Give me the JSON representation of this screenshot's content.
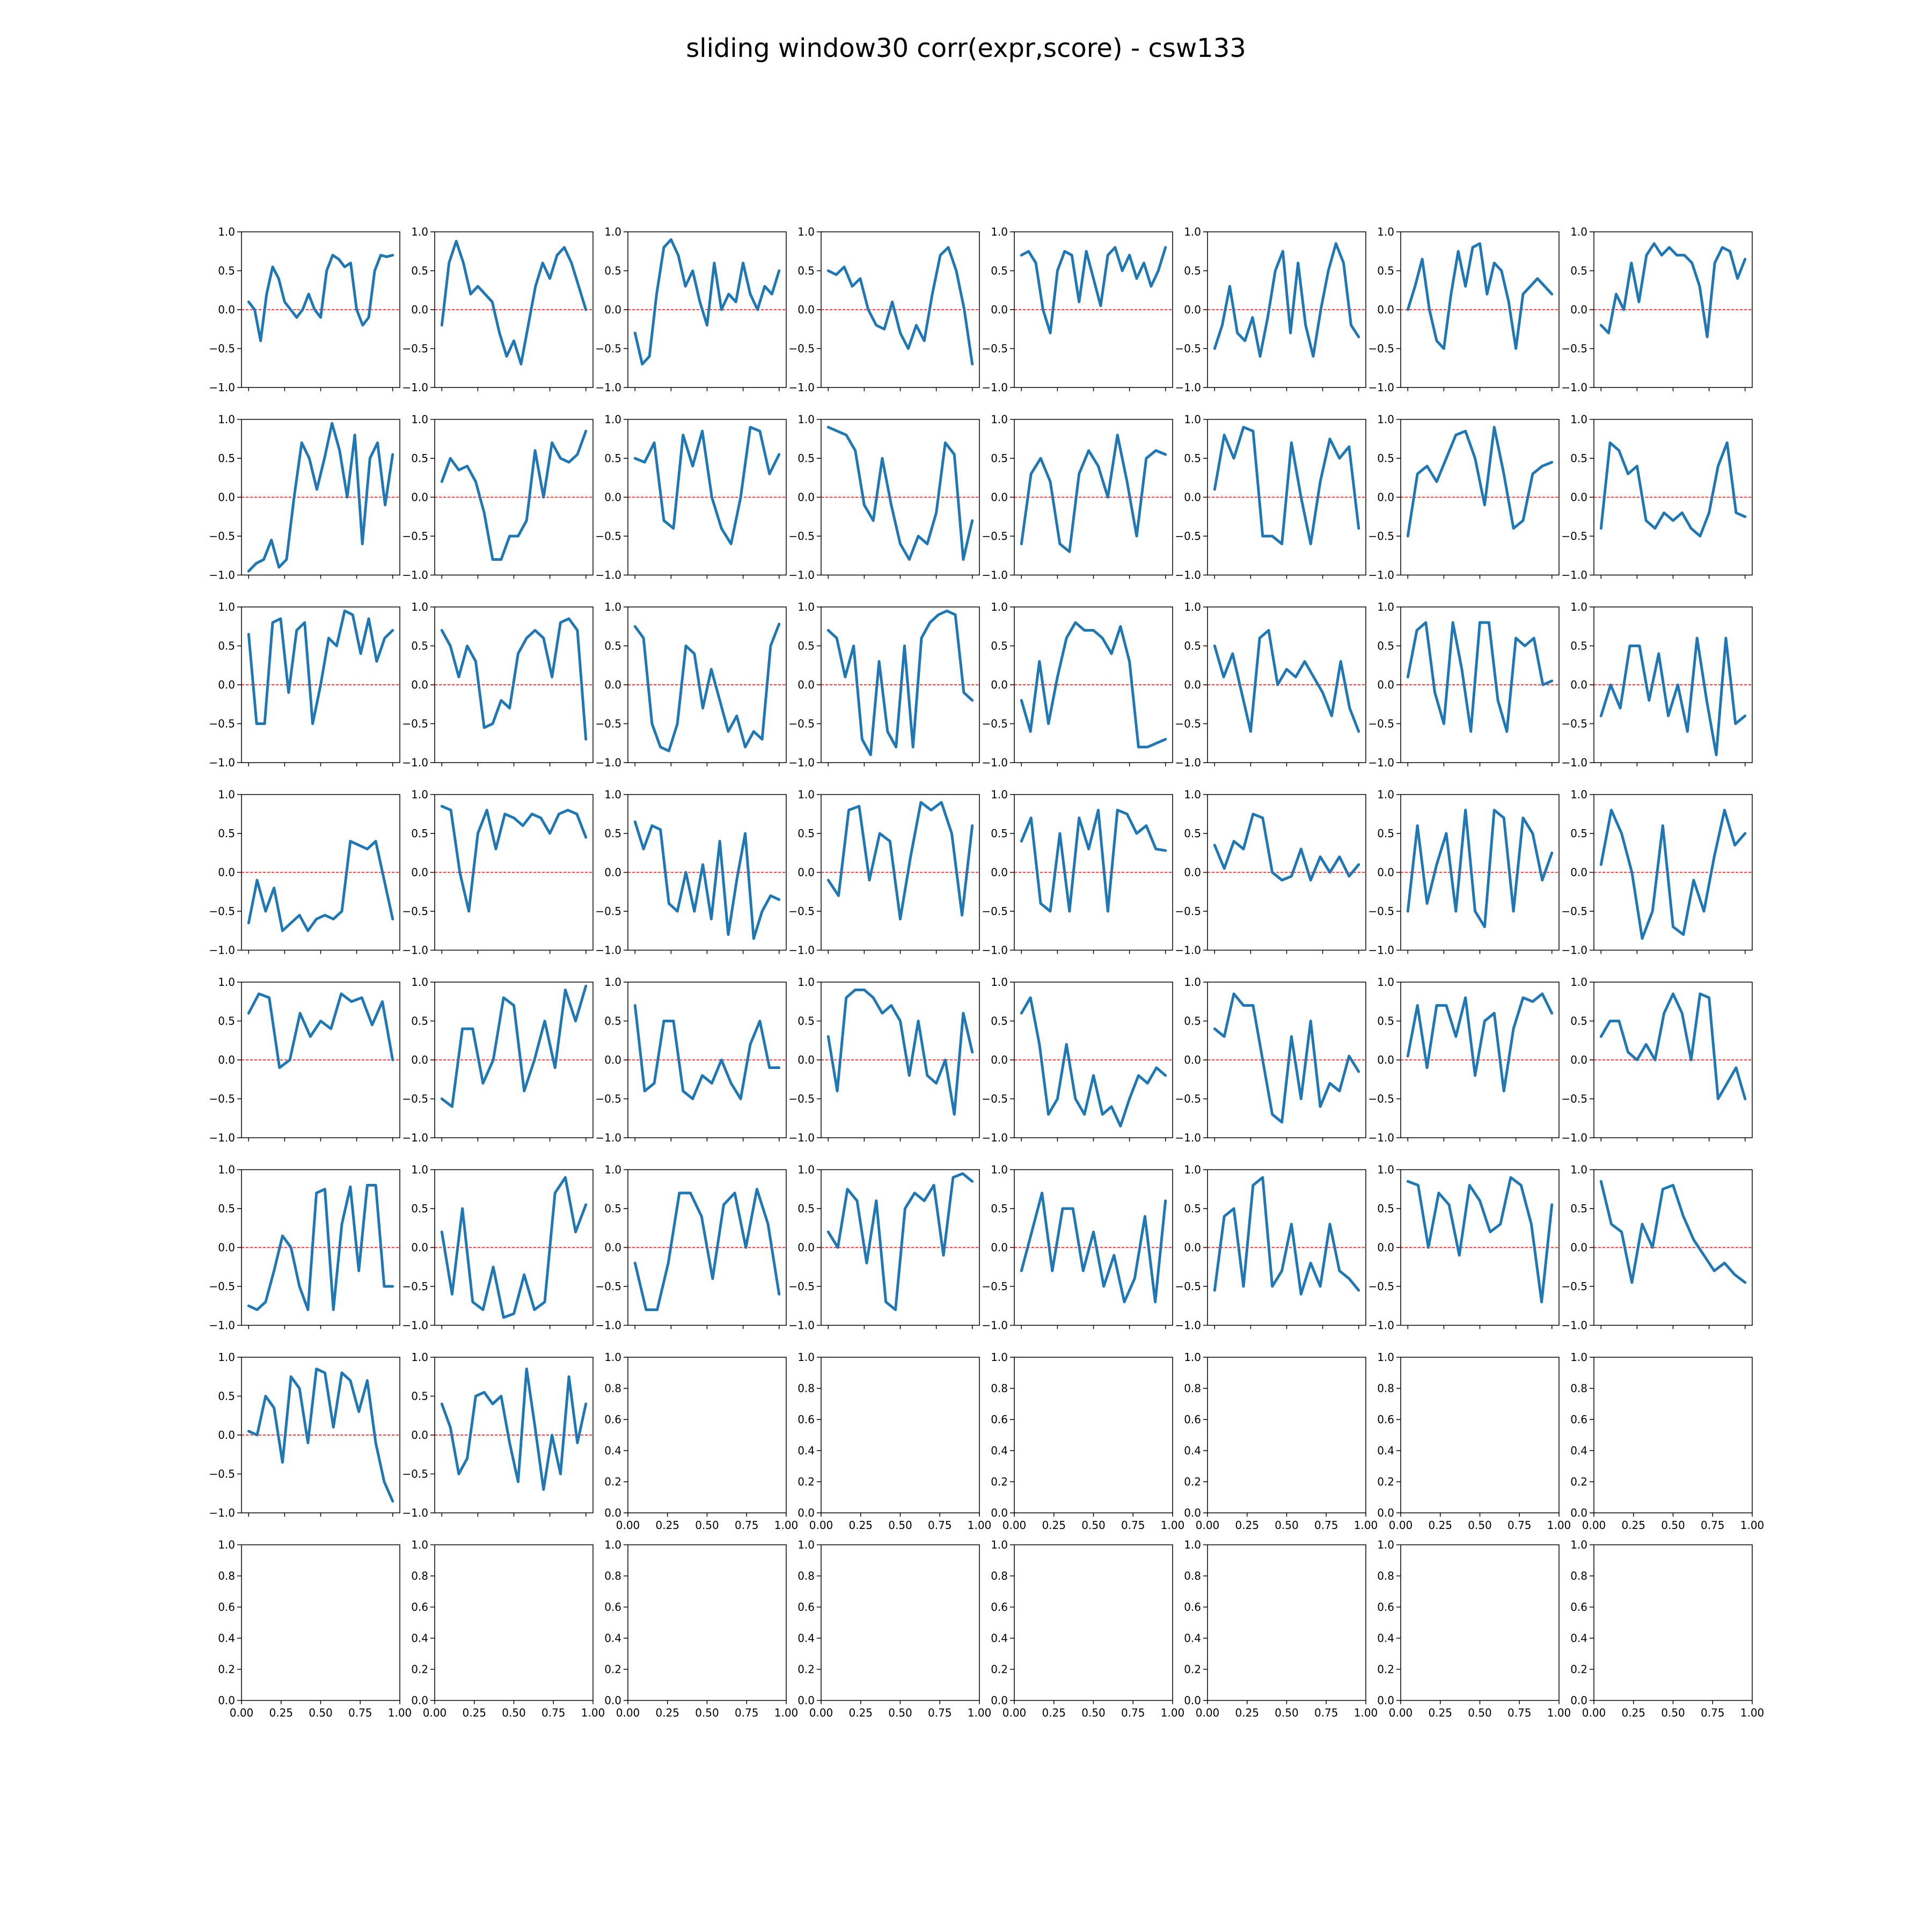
{
  "title": "sliding window30 corr(expr,score) - csw133",
  "colors": {
    "line": "#1f77b4",
    "zero_line": "#ff0000",
    "axes": "#000000"
  },
  "chart_data": {
    "type": "line",
    "layout": {
      "rows": 8,
      "cols": 8
    },
    "y_ticks_filled": [
      "1.0",
      "0.5",
      "0.0",
      "−0.5",
      "−1.0"
    ],
    "y_ticks_empty": [
      "1.0",
      "0.8",
      "0.6",
      "0.4",
      "0.2",
      "0.0"
    ],
    "x_ticks_empty": [
      "0.00",
      "0.25",
      "0.50",
      "0.75",
      "1.00"
    ],
    "ylim_filled": [
      -1,
      1
    ],
    "ylim_empty": [
      0,
      1
    ],
    "xlim_empty": [
      0,
      1
    ],
    "reference_line_y": 0,
    "series": [
      {
        "values": [
          0.1,
          0.0,
          -0.4,
          0.2,
          0.55,
          0.4,
          0.1,
          0.0,
          -0.1,
          0.0,
          0.2,
          0.0,
          -0.1,
          0.5,
          0.7,
          0.65,
          0.55,
          0.6,
          0.0,
          -0.2,
          -0.1,
          0.5,
          0.7,
          0.68,
          0.7
        ]
      },
      {
        "values": [
          -0.2,
          0.6,
          0.88,
          0.6,
          0.2,
          0.3,
          0.2,
          0.1,
          -0.3,
          -0.6,
          -0.4,
          -0.7,
          -0.2,
          0.3,
          0.6,
          0.4,
          0.7,
          0.8,
          0.6,
          0.3,
          0.0
        ]
      },
      {
        "values": [
          -0.3,
          -0.7,
          -0.6,
          0.2,
          0.8,
          0.9,
          0.7,
          0.3,
          0.5,
          0.1,
          -0.2,
          0.6,
          0.0,
          0.2,
          0.1,
          0.6,
          0.2,
          0.0,
          0.3,
          0.2,
          0.5
        ]
      },
      {
        "values": [
          0.5,
          0.45,
          0.55,
          0.3,
          0.4,
          0.0,
          -0.2,
          -0.25,
          0.1,
          -0.3,
          -0.5,
          -0.2,
          -0.4,
          0.2,
          0.7,
          0.8,
          0.5,
          0.0,
          -0.7
        ]
      },
      {
        "values": [
          0.7,
          0.75,
          0.6,
          0.0,
          -0.3,
          0.5,
          0.75,
          0.7,
          0.1,
          0.75,
          0.4,
          0.05,
          0.7,
          0.8,
          0.5,
          0.7,
          0.4,
          0.6,
          0.3,
          0.5,
          0.8
        ]
      },
      {
        "values": [
          -0.5,
          -0.2,
          0.3,
          -0.3,
          -0.4,
          -0.1,
          -0.6,
          -0.1,
          0.5,
          0.75,
          -0.3,
          0.6,
          -0.2,
          -0.6,
          0.0,
          0.5,
          0.85,
          0.6,
          -0.2,
          -0.35
        ]
      },
      {
        "values": [
          0.0,
          0.3,
          0.65,
          0.0,
          -0.4,
          -0.5,
          0.2,
          0.75,
          0.3,
          0.8,
          0.85,
          0.2,
          0.6,
          0.5,
          0.1,
          -0.5,
          0.2,
          0.3,
          0.4,
          0.3,
          0.2
        ]
      },
      {
        "values": [
          -0.2,
          -0.3,
          0.2,
          0.0,
          0.6,
          0.1,
          0.7,
          0.85,
          0.7,
          0.8,
          0.7,
          0.7,
          0.6,
          0.3,
          -0.35,
          0.6,
          0.8,
          0.75,
          0.4,
          0.65
        ]
      },
      {
        "values": [
          -0.95,
          -0.85,
          -0.8,
          -0.55,
          -0.9,
          -0.8,
          0.0,
          0.7,
          0.5,
          0.1,
          0.5,
          0.95,
          0.6,
          0.0,
          0.8,
          -0.6,
          0.5,
          0.7,
          -0.1,
          0.55
        ]
      },
      {
        "values": [
          0.2,
          0.5,
          0.35,
          0.4,
          0.2,
          -0.2,
          -0.8,
          -0.8,
          -0.5,
          -0.5,
          -0.3,
          0.6,
          0.0,
          0.7,
          0.5,
          0.45,
          0.55,
          0.85
        ]
      },
      {
        "values": [
          0.5,
          0.45,
          0.7,
          -0.3,
          -0.4,
          0.8,
          0.4,
          0.85,
          0.0,
          -0.4,
          -0.6,
          0.0,
          0.9,
          0.85,
          0.3,
          0.55
        ]
      },
      {
        "values": [
          0.9,
          0.85,
          0.8,
          0.6,
          -0.1,
          -0.3,
          0.5,
          -0.1,
          -0.6,
          -0.8,
          -0.5,
          -0.6,
          -0.2,
          0.7,
          0.55,
          -0.8,
          -0.3
        ]
      },
      {
        "values": [
          -0.6,
          0.3,
          0.5,
          0.2,
          -0.6,
          -0.7,
          0.3,
          0.6,
          0.4,
          0.0,
          0.8,
          0.2,
          -0.5,
          0.5,
          0.6,
          0.55
        ]
      },
      {
        "values": [
          0.1,
          0.8,
          0.5,
          0.9,
          0.85,
          -0.5,
          -0.5,
          -0.6,
          0.7,
          0.0,
          -0.6,
          0.2,
          0.75,
          0.5,
          0.65,
          -0.4
        ]
      },
      {
        "values": [
          -0.5,
          0.3,
          0.4,
          0.2,
          0.5,
          0.8,
          0.85,
          0.5,
          -0.1,
          0.9,
          0.3,
          -0.4,
          -0.3,
          0.3,
          0.4,
          0.45
        ]
      },
      {
        "values": [
          -0.4,
          0.7,
          0.6,
          0.3,
          0.4,
          -0.3,
          -0.4,
          -0.2,
          -0.3,
          -0.2,
          -0.4,
          -0.5,
          -0.2,
          0.4,
          0.7,
          -0.2,
          -0.25
        ]
      },
      {
        "values": [
          0.65,
          -0.5,
          -0.5,
          0.8,
          0.85,
          -0.1,
          0.7,
          0.8,
          -0.5,
          0.0,
          0.6,
          0.5,
          0.95,
          0.9,
          0.4,
          0.85,
          0.3,
          0.6,
          0.7
        ]
      },
      {
        "values": [
          0.7,
          0.5,
          0.1,
          0.5,
          0.3,
          -0.55,
          -0.5,
          -0.2,
          -0.3,
          0.4,
          0.6,
          0.7,
          0.6,
          0.1,
          0.8,
          0.85,
          0.7,
          -0.7
        ]
      },
      {
        "values": [
          0.75,
          0.6,
          -0.5,
          -0.8,
          -0.85,
          -0.5,
          0.5,
          0.4,
          -0.3,
          0.2,
          -0.2,
          -0.6,
          -0.4,
          -0.8,
          -0.6,
          -0.7,
          0.5,
          0.78
        ]
      },
      {
        "values": [
          0.7,
          0.6,
          0.1,
          0.5,
          -0.7,
          -0.9,
          0.3,
          -0.6,
          -0.8,
          0.5,
          -0.8,
          0.6,
          0.8,
          0.9,
          0.95,
          0.9,
          -0.1,
          -0.2
        ]
      },
      {
        "values": [
          -0.2,
          -0.6,
          0.3,
          -0.5,
          0.1,
          0.6,
          0.8,
          0.7,
          0.7,
          0.6,
          0.4,
          0.75,
          0.3,
          -0.8,
          -0.8,
          -0.75,
          -0.7
        ]
      },
      {
        "values": [
          0.5,
          0.1,
          0.4,
          -0.1,
          -0.6,
          0.6,
          0.7,
          0.0,
          0.2,
          0.1,
          0.3,
          0.1,
          -0.1,
          -0.4,
          0.3,
          -0.3,
          -0.6
        ]
      },
      {
        "values": [
          0.1,
          0.7,
          0.8,
          -0.1,
          -0.5,
          0.8,
          0.2,
          -0.6,
          0.8,
          0.8,
          -0.2,
          -0.6,
          0.6,
          0.5,
          0.6,
          0.0,
          0.05
        ]
      },
      {
        "values": [
          -0.4,
          0.0,
          -0.3,
          0.5,
          0.5,
          -0.2,
          0.4,
          -0.4,
          0.0,
          -0.6,
          0.6,
          -0.2,
          -0.9,
          0.6,
          -0.5,
          -0.4
        ]
      },
      {
        "values": [
          -0.65,
          -0.1,
          -0.5,
          -0.2,
          -0.75,
          -0.65,
          -0.55,
          -0.75,
          -0.6,
          -0.55,
          -0.6,
          -0.5,
          0.4,
          0.35,
          0.3,
          0.4,
          -0.1,
          -0.6
        ]
      },
      {
        "values": [
          0.85,
          0.8,
          0.0,
          -0.5,
          0.5,
          0.8,
          0.3,
          0.75,
          0.7,
          0.6,
          0.75,
          0.7,
          0.5,
          0.75,
          0.8,
          0.75,
          0.45
        ]
      },
      {
        "values": [
          0.65,
          0.3,
          0.6,
          0.55,
          -0.4,
          -0.5,
          0.0,
          -0.5,
          0.1,
          -0.6,
          0.4,
          -0.8,
          -0.1,
          0.5,
          -0.85,
          -0.5,
          -0.3,
          -0.35
        ]
      },
      {
        "values": [
          -0.1,
          -0.3,
          0.8,
          0.85,
          -0.1,
          0.5,
          0.4,
          -0.6,
          0.2,
          0.9,
          0.8,
          0.9,
          0.5,
          -0.55,
          0.6
        ]
      },
      {
        "values": [
          0.4,
          0.7,
          -0.4,
          -0.5,
          0.5,
          -0.5,
          0.7,
          0.3,
          0.8,
          -0.5,
          0.8,
          0.75,
          0.5,
          0.6,
          0.3,
          0.28
        ]
      },
      {
        "values": [
          0.35,
          0.05,
          0.4,
          0.3,
          0.75,
          0.7,
          0.0,
          -0.1,
          -0.05,
          0.3,
          -0.1,
          0.2,
          0.0,
          0.2,
          -0.05,
          0.1
        ]
      },
      {
        "values": [
          -0.5,
          0.6,
          -0.4,
          0.1,
          0.5,
          -0.5,
          0.8,
          -0.5,
          -0.7,
          0.8,
          0.7,
          -0.5,
          0.7,
          0.5,
          -0.1,
          0.25
        ]
      },
      {
        "values": [
          0.1,
          0.8,
          0.5,
          0.0,
          -0.85,
          -0.5,
          0.6,
          -0.7,
          -0.8,
          -0.1,
          -0.5,
          0.2,
          0.8,
          0.35,
          0.5
        ]
      },
      {
        "values": [
          0.6,
          0.85,
          0.8,
          -0.1,
          0.0,
          0.6,
          0.3,
          0.5,
          0.4,
          0.85,
          0.75,
          0.8,
          0.45,
          0.75,
          0.0
        ]
      },
      {
        "values": [
          -0.5,
          -0.6,
          0.4,
          0.4,
          -0.3,
          0.0,
          0.8,
          0.7,
          -0.4,
          0.0,
          0.5,
          -0.1,
          0.9,
          0.5,
          0.95
        ]
      },
      {
        "values": [
          0.7,
          -0.4,
          -0.3,
          0.5,
          0.5,
          -0.4,
          -0.5,
          -0.2,
          -0.3,
          0.0,
          -0.3,
          -0.5,
          0.2,
          0.5,
          -0.1,
          -0.1
        ]
      },
      {
        "values": [
          0.3,
          -0.4,
          0.8,
          0.9,
          0.9,
          0.8,
          0.6,
          0.7,
          0.5,
          -0.2,
          0.5,
          -0.2,
          -0.3,
          0.0,
          -0.7,
          0.6,
          0.1
        ]
      },
      {
        "values": [
          0.6,
          0.8,
          0.2,
          -0.7,
          -0.5,
          0.2,
          -0.5,
          -0.7,
          -0.2,
          -0.7,
          -0.6,
          -0.85,
          -0.5,
          -0.2,
          -0.3,
          -0.1,
          -0.2
        ]
      },
      {
        "values": [
          0.4,
          0.3,
          0.85,
          0.7,
          0.7,
          0.0,
          -0.7,
          -0.8,
          0.3,
          -0.5,
          0.5,
          -0.6,
          -0.3,
          -0.4,
          0.05,
          -0.15
        ]
      },
      {
        "values": [
          0.05,
          0.7,
          -0.1,
          0.7,
          0.7,
          0.3,
          0.8,
          -0.2,
          0.5,
          0.6,
          -0.4,
          0.4,
          0.8,
          0.75,
          0.85,
          0.6
        ]
      },
      {
        "values": [
          0.3,
          0.5,
          0.5,
          0.1,
          0.0,
          0.2,
          0.0,
          0.6,
          0.85,
          0.6,
          0.0,
          0.85,
          0.8,
          -0.5,
          -0.3,
          -0.1,
          -0.5
        ]
      },
      {
        "values": [
          -0.75,
          -0.8,
          -0.7,
          -0.3,
          0.15,
          0.0,
          -0.5,
          -0.8,
          0.7,
          0.75,
          -0.8,
          0.3,
          0.78,
          -0.3,
          0.8,
          0.8,
          -0.5,
          -0.5
        ]
      },
      {
        "values": [
          0.2,
          -0.6,
          0.5,
          -0.7,
          -0.8,
          -0.25,
          -0.9,
          -0.85,
          -0.35,
          -0.8,
          -0.7,
          0.7,
          0.9,
          0.2,
          0.55
        ]
      },
      {
        "values": [
          -0.2,
          -0.8,
          -0.8,
          -0.2,
          0.7,
          0.7,
          0.4,
          -0.4,
          0.55,
          0.7,
          0.0,
          0.75,
          0.3,
          -0.6
        ]
      },
      {
        "values": [
          0.2,
          0.0,
          0.75,
          0.6,
          -0.2,
          0.6,
          -0.7,
          -0.8,
          0.5,
          0.7,
          0.6,
          0.8,
          -0.1,
          0.9,
          0.95,
          0.85
        ]
      },
      {
        "values": [
          -0.3,
          0.2,
          0.7,
          -0.3,
          0.5,
          0.5,
          -0.3,
          0.2,
          -0.5,
          -0.1,
          -0.7,
          -0.4,
          0.4,
          -0.7,
          0.6
        ]
      },
      {
        "values": [
          -0.55,
          0.4,
          0.5,
          -0.5,
          0.8,
          0.9,
          -0.5,
          -0.3,
          0.3,
          -0.6,
          -0.2,
          -0.5,
          0.3,
          -0.3,
          -0.4,
          -0.55
        ]
      },
      {
        "values": [
          0.85,
          0.8,
          0.0,
          0.7,
          0.55,
          -0.1,
          0.8,
          0.6,
          0.2,
          0.3,
          0.9,
          0.8,
          0.3,
          -0.7,
          0.55
        ]
      },
      {
        "values": [
          0.85,
          0.3,
          0.2,
          -0.45,
          0.3,
          0.0,
          0.75,
          0.8,
          0.4,
          0.1,
          -0.1,
          -0.3,
          -0.2,
          -0.35,
          -0.45
        ]
      },
      {
        "values": [
          0.05,
          0.0,
          0.5,
          0.35,
          -0.35,
          0.75,
          0.6,
          -0.1,
          0.85,
          0.8,
          0.1,
          0.8,
          0.7,
          0.3,
          0.7,
          -0.1,
          -0.6,
          -0.85
        ]
      },
      {
        "values": [
          0.4,
          0.1,
          -0.5,
          -0.3,
          0.5,
          0.55,
          0.4,
          0.5,
          -0.1,
          -0.6,
          0.85,
          0.1,
          -0.7,
          0.0,
          -0.5,
          0.75,
          -0.1,
          0.4
        ]
      }
    ]
  }
}
